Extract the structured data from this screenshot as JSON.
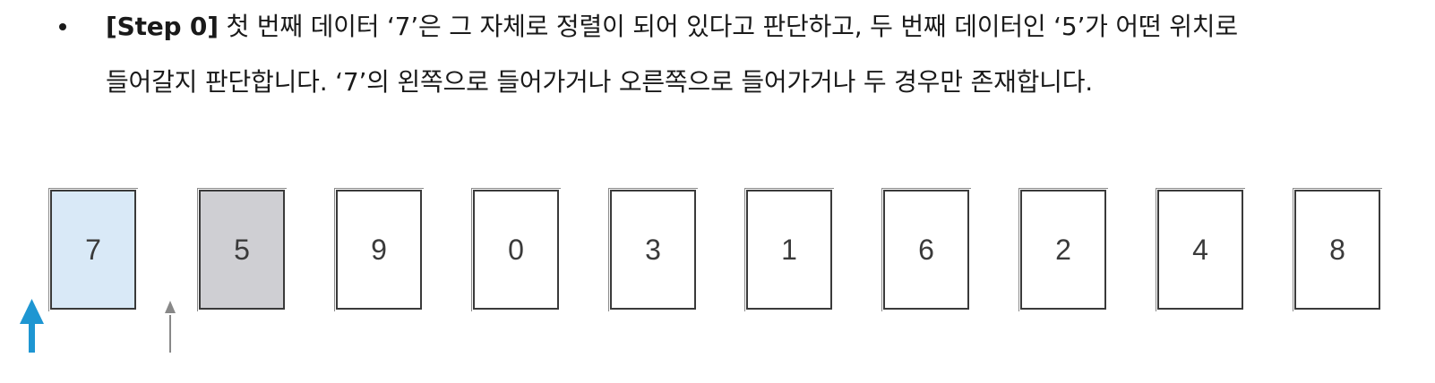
{
  "description": {
    "step_label": "[Step 0]",
    "line1_rest": " 첫 번째 데이터 ‘7’은 그 자체로 정렬이 되어 있다고 판단하고, 두 번째 데이터인 ‘5’가 어떤 위치로",
    "line2": "들어갈지 판단합니다. ‘7’의 왼쪽으로 들어가거나 오른쪽으로 들어가거나 두 경우만 존재합니다."
  },
  "cards": [
    "7",
    "5",
    "9",
    "0",
    "3",
    "1",
    "6",
    "2",
    "4",
    "8"
  ],
  "colors": {
    "sorted": "#d9e9f7",
    "current": "#cfcfd3",
    "blue_arrow": "#1e96d2",
    "gray_arrow": "#888888"
  }
}
